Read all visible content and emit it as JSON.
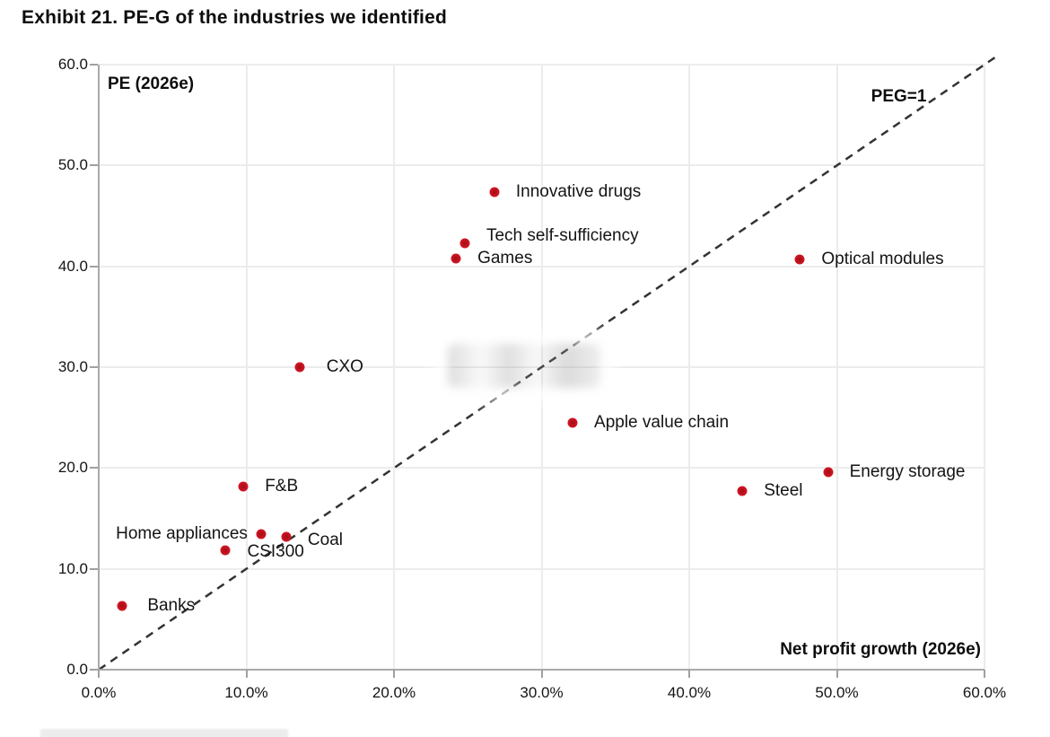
{
  "title": "Exhibit 21. PE-G of the industries we identified",
  "chart_data": {
    "type": "scatter",
    "title": "Exhibit 21. PE-G of the industries we identified",
    "xlabel": "Net profit growth (2026e)",
    "ylabel": "PE (2026e)",
    "xlim": [
      0,
      60
    ],
    "ylim": [
      0,
      60
    ],
    "grid": true,
    "x_tick_values": [
      0,
      10,
      20,
      30,
      40,
      50,
      60
    ],
    "x_tick_labels": [
      "0.0%",
      "10.0%",
      "20.0%",
      "30.0%",
      "40.0%",
      "50.0%",
      "60.0%"
    ],
    "y_tick_values": [
      0,
      10,
      20,
      30,
      40,
      50,
      60
    ],
    "y_tick_labels": [
      "0.0",
      "10.0",
      "20.0",
      "30.0",
      "40.0",
      "50.0",
      "60.0"
    ],
    "point_color": "#ce1422",
    "reference_line": {
      "label": "PEG=1",
      "style": "dashed",
      "color": "#333333",
      "from": [
        0,
        0
      ],
      "to": [
        60,
        60
      ],
      "label_pos": {
        "x": 54.2,
        "y": 56.8
      }
    },
    "points": [
      {
        "label": "Innovative drugs",
        "x": 26.8,
        "y": 47.4,
        "label_side": "right"
      },
      {
        "label": "Tech self-sufficiency",
        "x": 24.8,
        "y": 42.3,
        "label_side": "right",
        "label_dy": -8
      },
      {
        "label": "Games",
        "x": 24.2,
        "y": 40.8,
        "label_side": "right"
      },
      {
        "label": "Optical modules",
        "x": 47.5,
        "y": 40.7,
        "label_side": "right"
      },
      {
        "label": "CXO",
        "x": 13.6,
        "y": 30.0,
        "label_side": "right",
        "label_dx": 30
      },
      {
        "label": "Apple value chain",
        "x": 32.1,
        "y": 24.5,
        "label_side": "right"
      },
      {
        "label": "Energy storage",
        "x": 49.4,
        "y": 19.6,
        "label_side": "right"
      },
      {
        "label": "F&B",
        "x": 9.8,
        "y": 18.2,
        "label_side": "right"
      },
      {
        "label": "Steel",
        "x": 43.6,
        "y": 17.7,
        "label_side": "right"
      },
      {
        "label": "Home appliances",
        "x": 11.0,
        "y": 13.4,
        "label_side": "left"
      },
      {
        "label": "Coal",
        "x": 12.7,
        "y": 13.2,
        "label_side": "right",
        "label_dy": 4
      },
      {
        "label": "CSI300",
        "x": 8.6,
        "y": 11.8,
        "label_side": "right",
        "label_dy": 2
      },
      {
        "label": "Banks",
        "x": 1.6,
        "y": 6.3,
        "label_side": "right",
        "label_dx": 28
      }
    ],
    "annotations": {
      "watermark_redacted": true,
      "source_line_redacted": true
    }
  },
  "colors": {
    "point": "#ce1422",
    "grid": "#ececec",
    "axis": "#a9a9a9",
    "text": "#141414",
    "reference_line": "#333333"
  }
}
